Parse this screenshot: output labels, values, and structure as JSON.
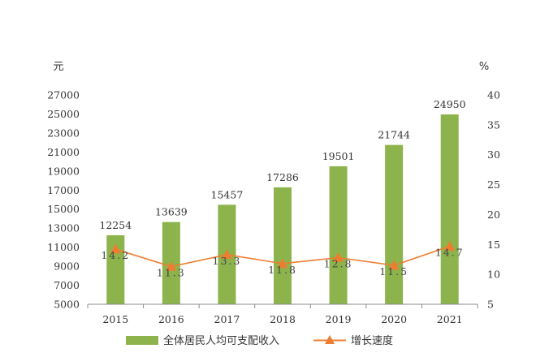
{
  "chart_data": {
    "type": "bar",
    "categories": [
      "2015",
      "2016",
      "2017",
      "2018",
      "2019",
      "2020",
      "2021"
    ],
    "series": [
      {
        "name": "全体居民人均可支配收入",
        "type": "bar",
        "axis": "left",
        "values": [
          12254,
          13639,
          15457,
          17286,
          19501,
          21744,
          24950
        ],
        "color": "#8db34c"
      },
      {
        "name": "增长速度",
        "type": "line",
        "axis": "right",
        "marker": "triangle",
        "values": [
          14.2,
          11.3,
          13.3,
          11.8,
          12.8,
          11.5,
          14.7
        ],
        "color": "#ed7d31"
      }
    ],
    "left_axis": {
      "unit": "元",
      "ylim": [
        5000,
        27000
      ],
      "ticks": [
        5000,
        7000,
        9000,
        11000,
        13000,
        15000,
        17000,
        19000,
        21000,
        23000,
        25000,
        27000
      ]
    },
    "right_axis": {
      "unit": "%",
      "ylim": [
        5,
        40
      ],
      "ticks": [
        5,
        10,
        15,
        20,
        25,
        30,
        35,
        40
      ]
    },
    "legend_position": "bottom",
    "grid": false
  }
}
